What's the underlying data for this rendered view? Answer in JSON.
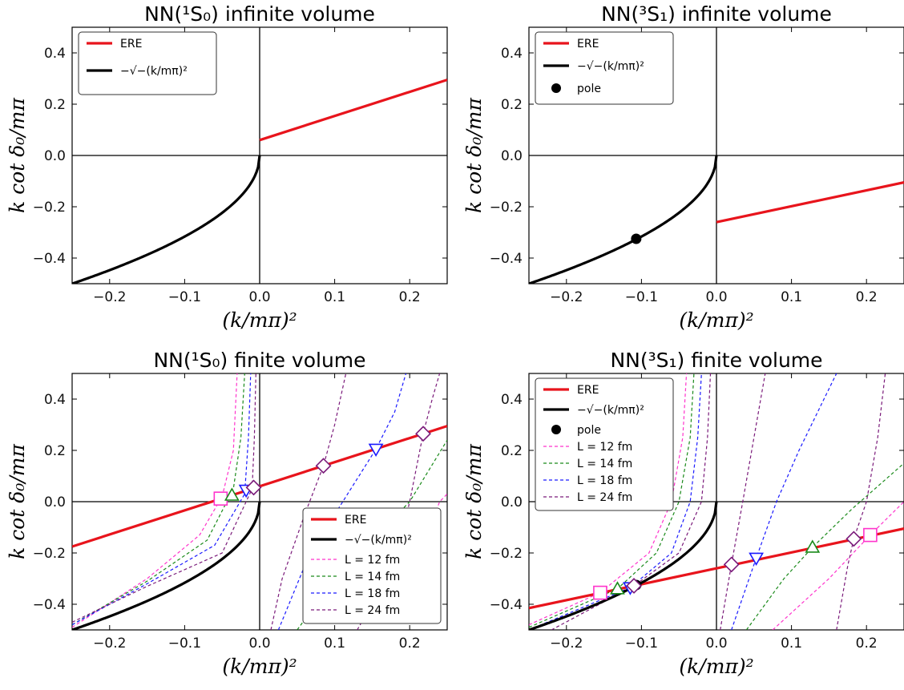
{
  "chart_data": [
    {
      "type": "line",
      "title": "NN(¹S₀) infinite volume",
      "xlabel": "(k/mπ)²",
      "ylabel": "k cot δ₀/mπ",
      "xlim": [
        -0.25,
        0.25
      ],
      "ylim": [
        -0.5,
        0.5
      ],
      "x_ticks": [
        "-0.2",
        "-0.1",
        "0.0",
        "0.1",
        "0.2"
      ],
      "y_ticks": [
        "-0.4",
        "-0.2",
        "0.0",
        "0.2",
        "0.4"
      ],
      "grid": false,
      "legend_position": "top-left",
      "legend": [
        "ERE",
        "−√−(k/mπ)²"
      ],
      "series": [
        {
          "name": "ERE",
          "color": "#e8141c",
          "x": [
            0.0,
            0.25
          ],
          "y": [
            0.06,
            0.295
          ]
        },
        {
          "name": "−√−(k/mπ)²",
          "color": "#000000",
          "function": "-sqrt(-x)",
          "x_range": [
            -0.25,
            0.0
          ]
        }
      ]
    },
    {
      "type": "line",
      "title": "NN(³S₁) infinite volume",
      "xlabel": "(k/mπ)²",
      "ylabel": "k cot δ₀/mπ",
      "xlim": [
        -0.25,
        0.25
      ],
      "ylim": [
        -0.5,
        0.5
      ],
      "x_ticks": [
        "-0.2",
        "-0.1",
        "0.0",
        "0.1",
        "0.2"
      ],
      "y_ticks": [
        "-0.4",
        "-0.2",
        "0.0",
        "0.2",
        "0.4"
      ],
      "grid": false,
      "legend_position": "top-left",
      "legend": [
        "ERE",
        "−√−(k/mπ)²",
        "pole"
      ],
      "series": [
        {
          "name": "ERE",
          "color": "#e8141c",
          "x": [
            0.0,
            0.25
          ],
          "y": [
            -0.26,
            -0.105
          ]
        },
        {
          "name": "−√−(k/mπ)²",
          "color": "#000000",
          "function": "-sqrt(-x)",
          "x_range": [
            -0.25,
            0.0
          ]
        },
        {
          "name": "pole",
          "type": "scatter",
          "x": [
            -0.107
          ],
          "y": [
            -0.325
          ]
        }
      ]
    },
    {
      "type": "line",
      "title": "NN(¹S₀) finite volume",
      "xlabel": "(k/mπ)²",
      "ylabel": "k cot δ₀/mπ",
      "xlim": [
        -0.25,
        0.25
      ],
      "ylim": [
        -0.5,
        0.5
      ],
      "x_ticks": [
        "-0.2",
        "-0.1",
        "0.0",
        "0.1",
        "0.2"
      ],
      "y_ticks": [
        "-0.4",
        "-0.2",
        "0.0",
        "0.2",
        "0.4"
      ],
      "grid": false,
      "legend_position": "lower-right",
      "legend": [
        "ERE",
        "−√−(k/mπ)²",
        "L = 12 fm",
        "L = 14 fm",
        "L = 18 fm",
        "L = 24 fm"
      ],
      "series": [
        {
          "name": "ERE",
          "color": "#e8141c",
          "x": [
            -0.25,
            0.25
          ],
          "y": [
            -0.175,
            0.295
          ]
        },
        {
          "name": "−√−(k/mπ)²",
          "color": "#000000",
          "function": "-sqrt(-x)",
          "x_range": [
            -0.25,
            0.0
          ]
        },
        {
          "name": "L = 12 fm",
          "color": "#ff33cc",
          "marker": "square",
          "x": [
            -0.052
          ],
          "y": [
            0.012
          ]
        },
        {
          "name": "L = 14 fm",
          "color": "#1a8a1a",
          "marker": "triangle-up",
          "x": [
            -0.037
          ],
          "y": [
            0.025
          ]
        },
        {
          "name": "L = 18 fm",
          "color": "#1a1aff",
          "marker": "triangle-down",
          "x": [
            -0.018,
            0.155
          ],
          "y": [
            0.045,
            0.205
          ]
        },
        {
          "name": "L = 24 fm",
          "color": "#7a1a7a",
          "marker": "diamond",
          "x": [
            -0.008,
            0.085,
            0.218
          ],
          "y": [
            0.055,
            0.14,
            0.265
          ]
        }
      ]
    },
    {
      "type": "line",
      "title": "NN(³S₁) finite volume",
      "xlabel": "(k/mπ)²",
      "ylabel": "k cot δ₀/mπ",
      "xlim": [
        -0.25,
        0.25
      ],
      "ylim": [
        -0.5,
        0.5
      ],
      "x_ticks": [
        "-0.2",
        "-0.1",
        "0.0",
        "0.1",
        "0.2"
      ],
      "y_ticks": [
        "-0.4",
        "-0.2",
        "0.0",
        "0.2",
        "0.4"
      ],
      "grid": false,
      "legend_position": "top-left",
      "legend": [
        "ERE",
        "−√−(k/mπ)²",
        "pole",
        "L = 12 fm",
        "L = 14 fm",
        "L = 18 fm",
        "L = 24 fm"
      ],
      "series": [
        {
          "name": "ERE",
          "color": "#e8141c",
          "x": [
            -0.25,
            0.25
          ],
          "y": [
            -0.415,
            -0.105
          ]
        },
        {
          "name": "−√−(k/mπ)²",
          "color": "#000000",
          "function": "-sqrt(-x)",
          "x_range": [
            -0.25,
            0.0
          ]
        },
        {
          "name": "pole",
          "type": "scatter",
          "x": [
            -0.107
          ],
          "y": [
            -0.325
          ]
        },
        {
          "name": "L = 12 fm",
          "color": "#ff33cc",
          "marker": "square",
          "x": [
            -0.155,
            0.205
          ],
          "y": [
            -0.355,
            -0.13
          ]
        },
        {
          "name": "L = 14 fm",
          "color": "#1a8a1a",
          "marker": "triangle-up",
          "x": [
            -0.132,
            0.128
          ],
          "y": [
            -0.34,
            -0.178
          ]
        },
        {
          "name": "L = 18 fm",
          "color": "#1a1aff",
          "marker": "triangle-down",
          "x": [
            -0.115,
            0.053
          ],
          "y": [
            -0.335,
            -0.22
          ]
        },
        {
          "name": "L = 24 fm",
          "color": "#7a1a7a",
          "marker": "diamond",
          "x": [
            -0.11,
            0.02,
            0.183
          ],
          "y": [
            -0.328,
            -0.245,
            -0.145
          ]
        }
      ]
    }
  ]
}
